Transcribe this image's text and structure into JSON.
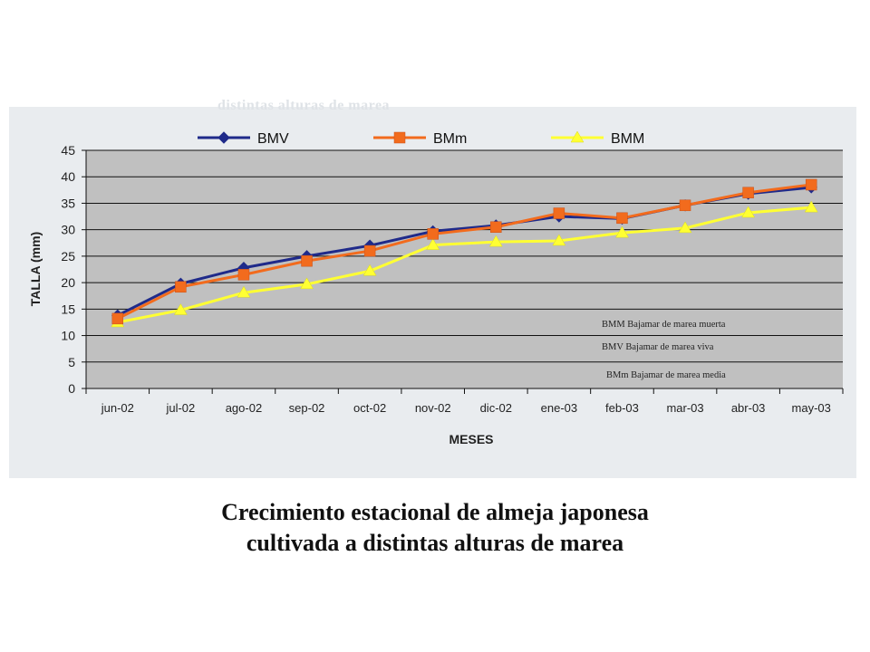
{
  "chart_data": {
    "type": "line",
    "faded_title": "distintas alturas de marea",
    "xlabel": "MESES",
    "ylabel": "TALLA (mm)",
    "ylim": [
      0,
      45
    ],
    "yticks": [
      0,
      5,
      10,
      15,
      20,
      25,
      30,
      35,
      40,
      45
    ],
    "grid": true,
    "legend_position": "top",
    "categories": [
      "jun-02",
      "jul-02",
      "ago-02",
      "sep-02",
      "oct-02",
      "nov-02",
      "dic-02",
      "ene-03",
      "feb-03",
      "mar-03",
      "abr-03",
      "may-03"
    ],
    "series": [
      {
        "name": "BMV",
        "color": "#1f2a8a",
        "marker": "diamond",
        "values": [
          13.8,
          19.8,
          22.8,
          25.0,
          27.0,
          29.7,
          30.8,
          32.5,
          32.1,
          34.6,
          36.8,
          38.0
        ]
      },
      {
        "name": "BMm",
        "color": "#f26b1d",
        "marker": "square",
        "values": [
          13.2,
          19.2,
          21.5,
          24.1,
          26.0,
          29.2,
          30.5,
          33.1,
          32.2,
          34.6,
          37.0,
          38.5
        ]
      },
      {
        "name": "BMM",
        "color": "#ffff33",
        "marker": "triangle",
        "values": [
          12.5,
          14.8,
          18.1,
          19.7,
          22.2,
          27.1,
          27.7,
          27.9,
          29.4,
          30.3,
          33.2,
          34.2
        ]
      }
    ],
    "notes": [
      "BMM Bajamar de marea muerta",
      "BMV Bajamar de marea viva",
      "BMm Bajamar de marea media"
    ]
  },
  "caption": {
    "line1": "Crecimiento estacional de almeja japonesa",
    "line2": "cultivada a distintas alturas de marea"
  }
}
